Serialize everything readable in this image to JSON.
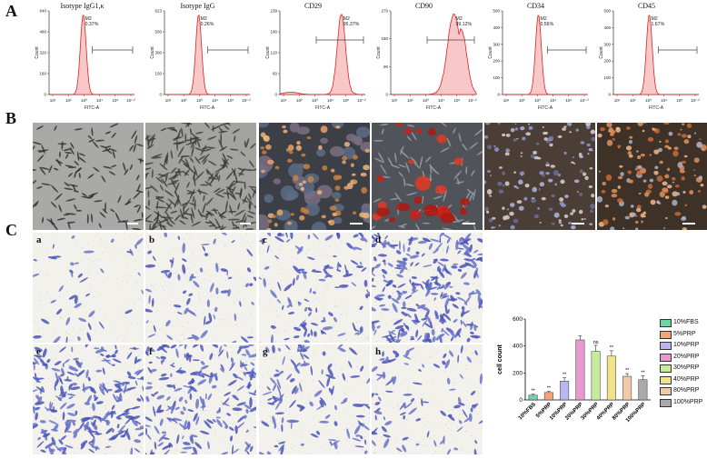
{
  "panels": {
    "a": "A",
    "b": "B",
    "c": "C"
  },
  "flow": [
    {
      "title": "Isotype IgG1,κ",
      "gate_name": "M2",
      "gate_pct": "0.37%",
      "ymax": "640",
      "yticks": [
        "640",
        "480",
        "320",
        "160",
        "0"
      ],
      "shape": "narrow",
      "peak": 0.4
    },
    {
      "title": "Isotype IgG",
      "gate_name": "M2",
      "gate_pct": "0.26%",
      "ymax": "623",
      "yticks": [
        "623",
        "500",
        "300",
        "150",
        "0"
      ],
      "shape": "narrow",
      "peak": 0.4
    },
    {
      "title": "CD29",
      "gate_name": "M2",
      "gate_pct": "95.37%",
      "ymax": "239",
      "yticks": [
        "239",
        "180",
        "120",
        "60",
        "0"
      ],
      "shape": "shifted",
      "peak": 0.72
    },
    {
      "title": "CD90",
      "gate_name": "M2",
      "gate_pct": "99.12%",
      "ymax": "270",
      "yticks": [
        "270",
        "180",
        "90",
        "0"
      ],
      "shape": "broad",
      "peak": 0.74
    },
    {
      "title": "CD34",
      "gate_name": "M2",
      "gate_pct": "0.56%",
      "ymax": "500",
      "yticks": [
        "500",
        "400",
        "300",
        "200",
        "100",
        "0"
      ],
      "shape": "narrow",
      "peak": 0.42
    },
    {
      "title": "CD45",
      "gate_name": "M2",
      "gate_pct": "1.67%",
      "ymax": "500",
      "yticks": [
        "500",
        "400",
        "300",
        "200",
        "100",
        "0"
      ],
      "shape": "narrow",
      "peak": 0.42
    }
  ],
  "flow_axis": {
    "xlabel": "FITC-A",
    "ylabel": "Count",
    "xticks": [
      "10¹",
      "10²",
      "10³",
      "10⁴",
      "10⁵",
      "10⁷·²"
    ]
  },
  "micro_top": [
    "",
    "",
    "",
    "",
    "",
    ""
  ],
  "transwell": {
    "letters": [
      "a",
      "b",
      "c",
      "d",
      "e",
      "f",
      "g",
      "h"
    ]
  },
  "chart_data": {
    "type": "bar",
    "categories": [
      "10%FBS",
      "5%PRP",
      "10%PRP",
      "20%PRP",
      "30%PRP",
      "40%PRP",
      "80%PRP",
      "100%PRP"
    ],
    "values": [
      35,
      55,
      140,
      445,
      360,
      325,
      175,
      150
    ],
    "errors": [
      8,
      8,
      25,
      30,
      45,
      40,
      20,
      30
    ],
    "annotations": [
      "**",
      "**",
      "**",
      "",
      "ns",
      "**",
      "**",
      "**"
    ],
    "ylabel": "cell count",
    "ylim": [
      0,
      600
    ],
    "yticks": [
      0,
      200,
      400,
      600
    ],
    "colors": [
      "#6fd3a8",
      "#f3a27a",
      "#b9b6f0",
      "#e99ad0",
      "#c5ec9e",
      "#f1e28c",
      "#f1c9a8",
      "#aaaaaa"
    ],
    "legend": [
      "10%FBS",
      "5%PRP",
      "10%PRP",
      "20%PRP",
      "30%PRP",
      "40%PRP",
      "80%PRP",
      "100%PRP"
    ],
    "legend_position": "right"
  }
}
